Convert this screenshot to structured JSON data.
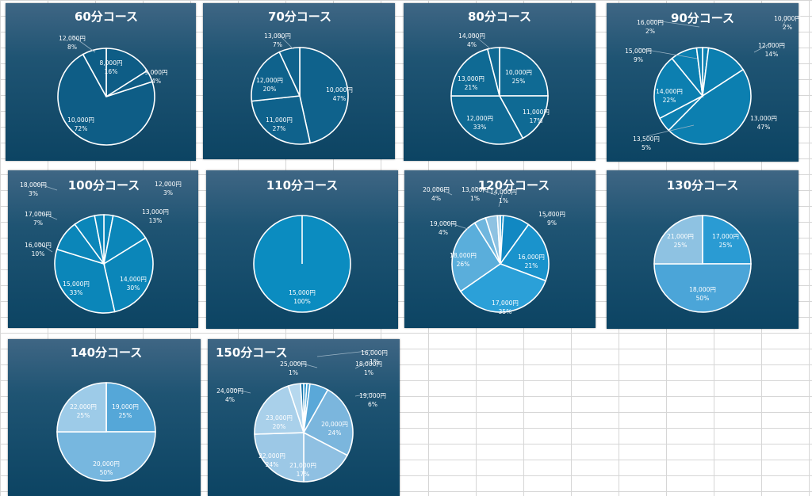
{
  "chart_data": [
    {
      "type": "pie",
      "title": "60分コース",
      "categories": [
        "8,000円",
        "9,000円",
        "10,000円",
        "12,000円"
      ],
      "values": [
        16,
        4,
        72,
        8
      ],
      "percent_labels": [
        "16%",
        "4%",
        "72%",
        "8%"
      ],
      "colors": [
        "#0e5d86",
        "#0e5d86",
        "#0e5d86",
        "#0e5d86"
      ]
    },
    {
      "type": "pie",
      "title": "70分コース",
      "categories": [
        "10,000円",
        "11,000円",
        "12,000円",
        "13,000円"
      ],
      "values": [
        47,
        27,
        20,
        7
      ],
      "percent_labels": [
        "47%",
        "27%",
        "20%",
        "7%"
      ],
      "colors": [
        "#0f628c",
        "#0f628c",
        "#0f628c",
        "#0f628c"
      ]
    },
    {
      "type": "pie",
      "title": "80分コース",
      "categories": [
        "10,000円",
        "11,000円",
        "12,000円",
        "13,000円",
        "14,000円"
      ],
      "values": [
        25,
        17,
        33,
        21,
        4
      ],
      "percent_labels": [
        "25%",
        "17%",
        "33%",
        "21%",
        "4%"
      ],
      "colors": [
        "#0f6a94",
        "#0f6a94",
        "#0f6a94",
        "#0f6a94",
        "#0f6a94"
      ]
    },
    {
      "type": "pie",
      "title": "90分コース",
      "categories": [
        "10,000円",
        "12,000円",
        "13,000円",
        "13,500円",
        "14,000円",
        "15,000円",
        "16,000円"
      ],
      "values": [
        2,
        14,
        47,
        5,
        22,
        9,
        2
      ],
      "percent_labels": [
        "2%",
        "14%",
        "47%",
        "5%",
        "22%",
        "9%",
        "2%"
      ],
      "colors": [
        "#0c7fb0",
        "#0c7fb0",
        "#0c7fb0",
        "#0c7fb0",
        "#0c7fb0",
        "#0c7fb0",
        "#0c7fb0"
      ]
    },
    {
      "type": "pie",
      "title": "100分コース",
      "categories": [
        "12,000円",
        "13,000円",
        "14,000円",
        "15,000円",
        "16,000円",
        "17,000円",
        "18,000円"
      ],
      "values": [
        3,
        13,
        30,
        33,
        10,
        7,
        3
      ],
      "percent_labels": [
        "3%",
        "13%",
        "30%",
        "33%",
        "10%",
        "7%",
        "3%"
      ],
      "colors": [
        "#0b86b9",
        "#0b86b9",
        "#0b86b9",
        "#0b86b9",
        "#0b86b9",
        "#0b86b9",
        "#0b86b9"
      ]
    },
    {
      "type": "pie",
      "title": "110分コース",
      "categories": [
        "15,000円"
      ],
      "values": [
        100
      ],
      "percent_labels": [
        "100%"
      ],
      "colors": [
        "#0b8cc0"
      ]
    },
    {
      "type": "pie",
      "title": "120分コース",
      "categories": [
        "14,000円",
        "15,000円",
        "16,000円",
        "17,000円",
        "18,000円",
        "19,000円",
        "20,000円",
        "13,000円"
      ],
      "values": [
        1,
        9,
        21,
        35,
        26,
        4,
        4,
        1
      ],
      "percent_labels": [
        "1%",
        "9%",
        "21%",
        "35%",
        "26%",
        "4%",
        "4%",
        "1%"
      ],
      "colors": [
        "#1188c2",
        "#1188c2",
        "#1a93cc",
        "#2ba0d8",
        "#5aaedb",
        "#6fb6de",
        "#8ec2e2",
        "#9ecbe6"
      ]
    },
    {
      "type": "pie",
      "title": "130分コース",
      "categories": [
        "17,000円",
        "18,000円",
        "21,000円"
      ],
      "values": [
        25,
        50,
        25
      ],
      "percent_labels": [
        "25%",
        "50%",
        "25%"
      ],
      "colors": [
        "#2a9bd3",
        "#4ba5d8",
        "#8ec2e2"
      ]
    },
    {
      "type": "pie",
      "title": "140分コース",
      "categories": [
        "19,000円",
        "20,000円",
        "22,000円"
      ],
      "values": [
        25,
        50,
        25
      ],
      "percent_labels": [
        "25%",
        "50%",
        "25%"
      ],
      "colors": [
        "#55a7d8",
        "#77b7df",
        "#9dcbe8"
      ]
    },
    {
      "type": "pie",
      "title": "150分コース",
      "categories": [
        "16,000円",
        "18,000円",
        "19,000円",
        "20,000円",
        "21,000円",
        "22,000円",
        "23,000円",
        "24,000円",
        "25,000円"
      ],
      "values": [
        1,
        1,
        6,
        24,
        17,
        24,
        20,
        4,
        1
      ],
      "percent_labels": [
        "1%",
        "1%",
        "6%",
        "24%",
        "17%",
        "24%",
        "20%",
        "4%",
        "1%"
      ],
      "colors": [
        "#1f8fca",
        "#3a9bd2",
        "#5aa8d8",
        "#7bb6dd",
        "#8fc0e2",
        "#9cc8e6",
        "#a9d0ea",
        "#b6d8ee",
        "#0f6fa6"
      ]
    }
  ]
}
